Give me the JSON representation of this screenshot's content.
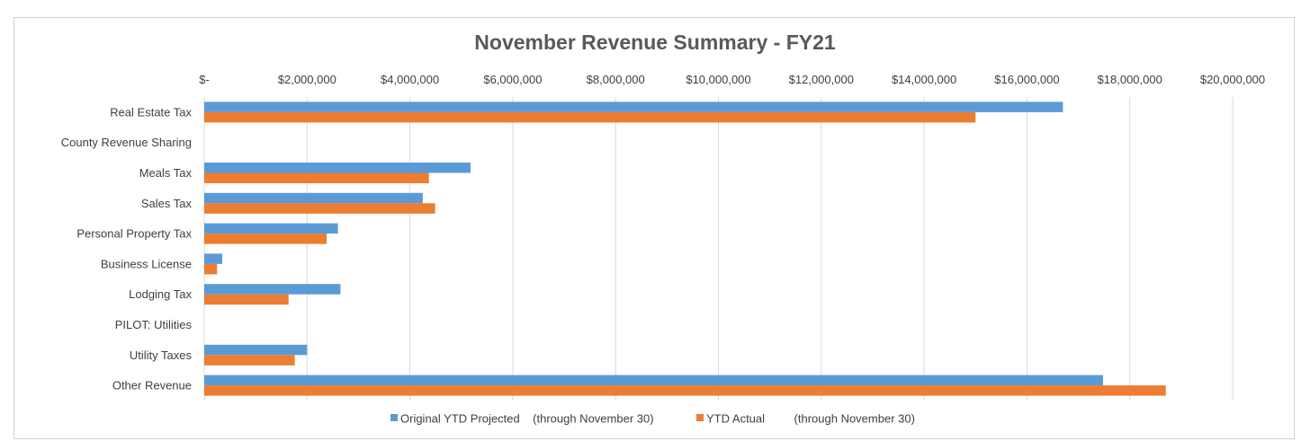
{
  "chart_data": {
    "type": "bar",
    "orientation": "horizontal",
    "title": "November Revenue Summary - FY21",
    "categories": [
      "Real Estate Tax",
      "County Revenue Sharing",
      "Meals Tax",
      "Sales Tax",
      "Personal Property Tax",
      "Business License",
      "Lodging Tax",
      "PILOT: Utilities",
      "Utility Taxes",
      "Other Revenue"
    ],
    "series": [
      {
        "name": "Original YTD Projected    (through November 30)",
        "color": "#5b9bd5",
        "values": [
          16700000,
          0,
          5180000,
          4250000,
          2600000,
          350000,
          2650000,
          0,
          2000000,
          17480000
        ]
      },
      {
        "name": "YTD Actual         (through November 30)",
        "color": "#ed7d31",
        "values": [
          15000000,
          0,
          4370000,
          4490000,
          2380000,
          250000,
          1640000,
          0,
          1760000,
          18700000
        ]
      }
    ],
    "xlim": [
      0,
      20000000
    ],
    "xticks": [
      0,
      2000000,
      4000000,
      6000000,
      8000000,
      10000000,
      12000000,
      14000000,
      16000000,
      18000000,
      20000000
    ],
    "xtick_labels": [
      "$-",
      "$2,000,000",
      "$4,000,000",
      "$6,000,000",
      "$8,000,000",
      "$10,000,000",
      "$12,000,000",
      "$14,000,000",
      "$16,000,000",
      "$18,000,000",
      "$20,000,000"
    ],
    "grid": true,
    "legend_position": "bottom"
  }
}
